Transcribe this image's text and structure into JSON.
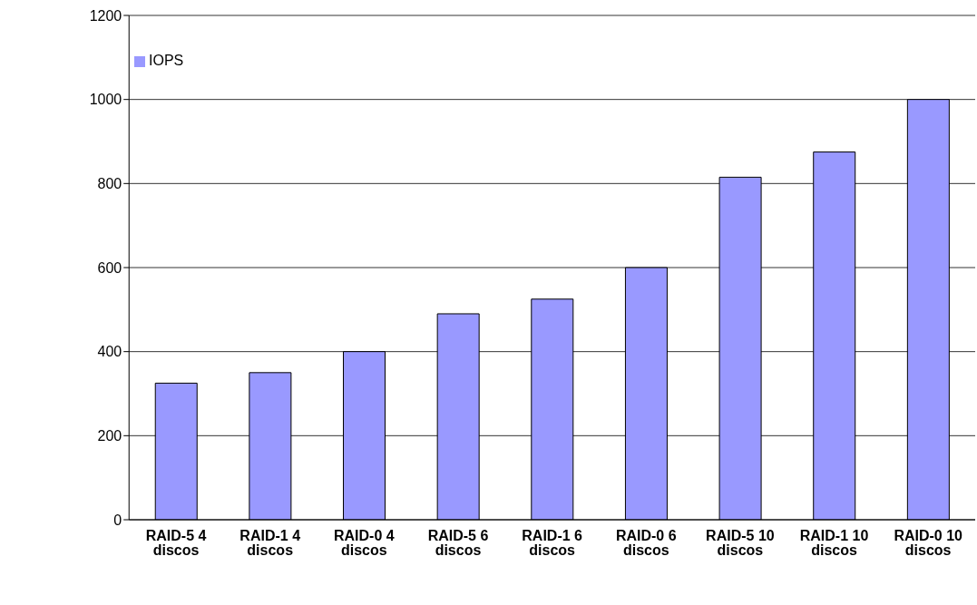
{
  "chart_data": {
    "type": "bar",
    "categories": [
      "RAID-5 4 discos",
      "RAID-1 4 discos",
      "RAID-0 4 discos",
      "RAID-5 6 discos",
      "RAID-1 6 discos",
      "RAID-0 6 discos",
      "RAID-5 10 discos",
      "RAID-1 10 discos",
      "RAID-0 10 discos"
    ],
    "series": [
      {
        "name": "IOPS",
        "color": "#9999ff",
        "values": [
          325,
          350,
          400,
          490,
          525,
          600,
          815,
          875,
          1000
        ]
      }
    ],
    "ylim": [
      0,
      1200
    ],
    "yticks": [
      0,
      200,
      400,
      600,
      800,
      1000,
      1200
    ],
    "grid": "y",
    "legend": "top left"
  }
}
